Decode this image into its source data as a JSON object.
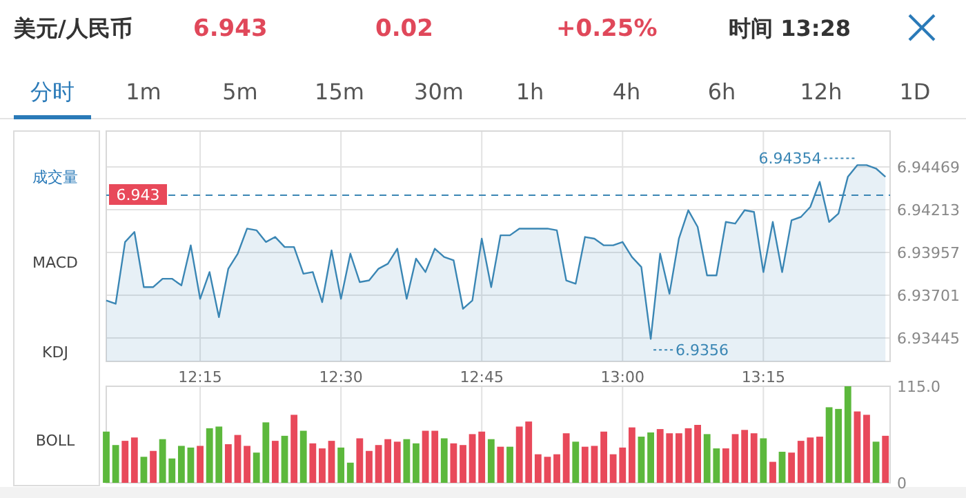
{
  "chart_data": [
    {
      "type": "area",
      "title": "美元/人民币",
      "annotations": [
        "6.943",
        "0.02",
        "+0.25%",
        "时间 13:28",
        "分时",
        "1m",
        "5m",
        "15m",
        "30m",
        "1h",
        "4h",
        "6h",
        "12h",
        "1D",
        "成交量",
        "MACD",
        "KDJ",
        "BOLL",
        {
          "text": "6.94354",
          "x": 13.4167,
          "y": 6.9448
        },
        {
          "text": "6.9356",
          "x": 13.05,
          "y": 6.9344
        }
      ],
      "x": [
        12.0833,
        12.1,
        12.1167,
        12.1333,
        12.15,
        12.1667,
        12.1833,
        12.2,
        12.2167,
        12.2333,
        12.25,
        12.2667,
        12.2833,
        12.3,
        12.3167,
        12.3333,
        12.35,
        12.3667,
        12.3833,
        12.4,
        12.4167,
        12.4333,
        12.45,
        12.4667,
        12.4833,
        12.5,
        12.5167,
        12.5333,
        12.55,
        12.5667,
        12.5833,
        12.6,
        12.6167,
        12.6333,
        12.65,
        12.6667,
        12.6833,
        12.7,
        12.7167,
        12.7333,
        12.75,
        12.7667,
        12.7833,
        12.8,
        12.8167,
        12.8333,
        12.85,
        12.8667,
        12.8833,
        12.9,
        12.9167,
        12.9333,
        12.95,
        12.9667,
        12.9833,
        13.0,
        13.0167,
        13.0333,
        13.05,
        13.0667,
        13.0833,
        13.1,
        13.1167,
        13.1333,
        13.15,
        13.1667,
        13.1833,
        13.2,
        13.2167,
        13.2333,
        13.25,
        13.2667,
        13.2833,
        13.3,
        13.3167,
        13.3333,
        13.35,
        13.3667,
        13.3833,
        13.4,
        13.4167,
        13.4333,
        13.45,
        13.4667
      ],
      "series": [
        {
          "color": "#3a86b4",
          "values": [
            6.9367,
            6.9365,
            6.9402,
            6.9408,
            6.9375,
            6.9375,
            6.938,
            6.938,
            6.9376,
            6.94,
            6.9368,
            6.9384,
            6.9357,
            6.9386,
            6.9395,
            6.941,
            6.9409,
            6.9402,
            6.9405,
            6.9399,
            6.9399,
            6.9383,
            6.9384,
            6.9366,
            6.9397,
            6.9368,
            6.9395,
            6.9378,
            6.9379,
            6.9386,
            6.9389,
            6.9398,
            6.9368,
            6.9392,
            6.9384,
            6.9398,
            6.9393,
            6.9391,
            6.9362,
            6.9367,
            6.9404,
            6.9375,
            6.9406,
            6.9406,
            6.941,
            6.941,
            6.941,
            6.941,
            6.9409,
            6.9379,
            6.9377,
            6.9405,
            6.9404,
            6.94,
            6.94,
            6.9402,
            6.9393,
            6.9387,
            6.9344,
            6.9395,
            6.9371,
            6.9404,
            6.9421,
            6.9411,
            6.9382,
            6.9382,
            6.9414,
            6.9413,
            6.9421,
            6.942,
            6.9384,
            6.9414,
            6.9384,
            6.9415,
            6.9417,
            6.9423,
            6.9438,
            6.9414,
            6.9419,
            6.9441,
            6.9448,
            6.9448,
            6.9446,
            6.9441
          ]
        }
      ],
      "xlim": [
        12.0833,
        13.475
      ],
      "ylim": [
        6.93305,
        6.94684
      ],
      "xticks": [
        {
          "value": 12.25,
          "label": "12:15"
        },
        {
          "value": 12.5,
          "label": "12:30"
        },
        {
          "value": 12.75,
          "label": "12:45"
        },
        {
          "value": 13,
          "label": "13:00"
        },
        {
          "value": 13.25,
          "label": "13:15"
        }
      ],
      "yticks": [
        6.93445,
        6.93701,
        6.93957,
        6.94213,
        6.94469
      ],
      "ref_lines": [
        {
          "axis": "y",
          "value": 6.943,
          "label": "6.943",
          "color": "#3a86b4",
          "line_style": "dashed"
        }
      ],
      "grid": true
    },
    {
      "type": "bar",
      "x": [
        12.0833,
        12.1,
        12.1167,
        12.1333,
        12.15,
        12.1667,
        12.1833,
        12.2,
        12.2167,
        12.2333,
        12.25,
        12.2667,
        12.2833,
        12.3,
        12.3167,
        12.3333,
        12.35,
        12.3667,
        12.3833,
        12.4,
        12.4167,
        12.4333,
        12.45,
        12.4667,
        12.4833,
        12.5,
        12.5167,
        12.5333,
        12.55,
        12.5667,
        12.5833,
        12.6,
        12.6167,
        12.6333,
        12.65,
        12.6667,
        12.6833,
        12.7,
        12.7167,
        12.7333,
        12.75,
        12.7667,
        12.7833,
        12.8,
        12.8167,
        12.8333,
        12.85,
        12.8667,
        12.8833,
        12.9,
        12.9167,
        12.9333,
        12.95,
        12.9667,
        12.9833,
        13.0,
        13.0167,
        13.0333,
        13.05,
        13.0667,
        13.0833,
        13.1,
        13.1167,
        13.1333,
        13.15,
        13.1667,
        13.1833,
        13.2,
        13.2167,
        13.2333,
        13.25,
        13.2667,
        13.2833,
        13.3,
        13.3167,
        13.3333,
        13.35,
        13.3667,
        13.3833,
        13.4,
        13.4167,
        13.4333,
        13.45,
        13.4667
      ],
      "values": [
        61,
        45,
        50,
        54,
        31,
        38,
        52,
        29,
        44,
        42,
        44,
        65,
        67,
        46,
        57,
        44,
        36,
        72,
        50,
        56,
        81,
        62,
        47,
        41,
        50,
        42,
        24,
        53,
        38,
        45,
        52,
        49,
        52,
        47,
        62,
        62,
        53,
        47,
        45,
        58,
        61,
        52,
        43,
        43,
        67,
        73,
        34,
        31,
        34,
        59,
        49,
        43,
        44,
        61,
        34,
        42,
        66,
        55,
        60,
        64,
        59,
        59,
        65,
        69,
        58,
        41,
        41,
        58,
        63,
        59,
        53,
        25,
        37,
        36,
        50,
        54,
        55,
        90,
        88,
        115,
        85,
        81,
        49,
        56
      ],
      "colors": [
        "#5cb83c",
        "#5cb83c",
        "#e8495a",
        "#e8495a",
        "#5cb83c",
        "#e8495a",
        "#5cb83c",
        "#5cb83c",
        "#5cb83c",
        "#5cb83c",
        "#e8495a",
        "#5cb83c",
        "#5cb83c",
        "#e8495a",
        "#e8495a",
        "#e8495a",
        "#5cb83c",
        "#5cb83c",
        "#e8495a",
        "#5cb83c",
        "#e8495a",
        "#5cb83c",
        "#e8495a",
        "#e8495a",
        "#e8495a",
        "#5cb83c",
        "#5cb83c",
        "#e8495a",
        "#e8495a",
        "#e8495a",
        "#e8495a",
        "#e8495a",
        "#5cb83c",
        "#5cb83c",
        "#e8495a",
        "#e8495a",
        "#5cb83c",
        "#e8495a",
        "#e8495a",
        "#e8495a",
        "#e8495a",
        "#5cb83c",
        "#e8495a",
        "#5cb83c",
        "#e8495a",
        "#e8495a",
        "#e8495a",
        "#e8495a",
        "#e8495a",
        "#e8495a",
        "#5cb83c",
        "#e8495a",
        "#e8495a",
        "#e8495a",
        "#e8495a",
        "#e8495a",
        "#e8495a",
        "#5cb83c",
        "#5cb83c",
        "#e8495a",
        "#e8495a",
        "#e8495a",
        "#e8495a",
        "#e8495a",
        "#5cb83c",
        "#5cb83c",
        "#e8495a",
        "#e8495a",
        "#e8495a",
        "#e8495a",
        "#5cb83c",
        "#e8495a",
        "#5cb83c",
        "#e8495a",
        "#e8495a",
        "#e8495a",
        "#e8495a",
        "#5cb83c",
        "#5cb83c",
        "#5cb83c",
        "#e8495a",
        "#e8495a",
        "#5cb83c",
        "#e8495a"
      ],
      "xlim": [
        12.0833,
        13.475
      ],
      "ylim": [
        0,
        115
      ],
      "xticks": [
        {
          "value": 12.25,
          "label": null
        },
        {
          "value": 12.5,
          "label": null
        },
        {
          "value": 12.75,
          "label": null
        },
        {
          "value": 13,
          "label": null
        },
        {
          "value": 13.25,
          "label": null
        }
      ],
      "yticks": [
        0,
        {
          "value": 115,
          "label": "115.0"
        }
      ],
      "tick_labels": "y",
      "grid": "x"
    }
  ]
}
